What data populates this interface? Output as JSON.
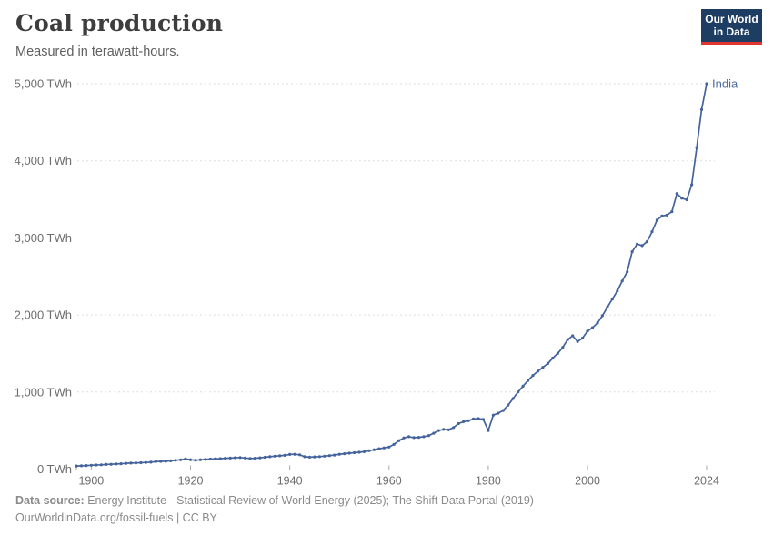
{
  "header": {
    "title": "Coal production",
    "subtitle": "Measured in terawatt-hours.",
    "logo": {
      "line1": "Our World",
      "line2": "in Data"
    }
  },
  "chart_data": {
    "type": "line",
    "title": "Coal production",
    "unit": "TWh",
    "xlabel": "",
    "ylabel": "",
    "xlim": [
      1897,
      2024
    ],
    "ylim": [
      0,
      5000
    ],
    "grid": "horizontal-dashed",
    "legend_position": "end-of-line",
    "x_ticks": [
      1900,
      1920,
      1940,
      1960,
      1980,
      2000,
      2024
    ],
    "y_ticks": [
      {
        "value": 0,
        "label": "0 TWh"
      },
      {
        "value": 1000,
        "label": "1,000 TWh"
      },
      {
        "value": 2000,
        "label": "2,000 TWh"
      },
      {
        "value": 3000,
        "label": "3,000 TWh"
      },
      {
        "value": 4000,
        "label": "4,000 TWh"
      },
      {
        "value": 5000,
        "label": "5,000 TWh"
      }
    ],
    "series": [
      {
        "name": "India",
        "start_year": 1897,
        "end_year": 2024,
        "values": [
          40,
          43,
          46,
          50,
          53,
          56,
          60,
          63,
          66,
          70,
          74,
          78,
          80,
          83,
          86,
          90,
          97,
          100,
          102,
          108,
          114,
          120,
          132,
          122,
          115,
          122,
          126,
          130,
          133,
          136,
          140,
          143,
          148,
          150,
          144,
          138,
          141,
          146,
          153,
          160,
          168,
          172,
          178,
          190,
          193,
          185,
          160,
          155,
          158,
          162,
          168,
          175,
          182,
          192,
          200,
          207,
          212,
          218,
          226,
          238,
          252,
          265,
          275,
          286,
          320,
          370,
          405,
          420,
          408,
          412,
          420,
          435,
          465,
          500,
          515,
          510,
          540,
          590,
          615,
          628,
          650,
          655,
          645,
          500,
          700,
          725,
          760,
          830,
          915,
          1000,
          1075,
          1150,
          1215,
          1270,
          1320,
          1370,
          1440,
          1500,
          1580,
          1680,
          1730,
          1655,
          1700,
          1790,
          1835,
          1895,
          1990,
          2100,
          2205,
          2310,
          2440,
          2560,
          2820,
          2920,
          2900,
          2950,
          3080,
          3230,
          3285,
          3295,
          3340,
          3575,
          3515,
          3495,
          3690,
          4170,
          4665,
          5000
        ]
      }
    ]
  },
  "colors": {
    "line": "#44639C",
    "entity_label": "#4d6ba3",
    "grid": "#dddddd",
    "axis": "#a8a8a8",
    "tick_label": "#6d6d6d",
    "title": "#3d3d3d",
    "subtitle": "#5f5f5f",
    "footer_text": "#8a8a8a",
    "logo_bg": "#1d3d63",
    "logo_accent": "#e0362f",
    "logo_text": "#ffffff"
  },
  "footer": {
    "source_label": "Data source:",
    "source_text": "Energy Institute - Statistical Review of World Energy (2025); The Shift Data Portal (2019)",
    "link_text": "OurWorldinData.org/fossil-fuels",
    "separator": "|",
    "license": "CC BY"
  }
}
